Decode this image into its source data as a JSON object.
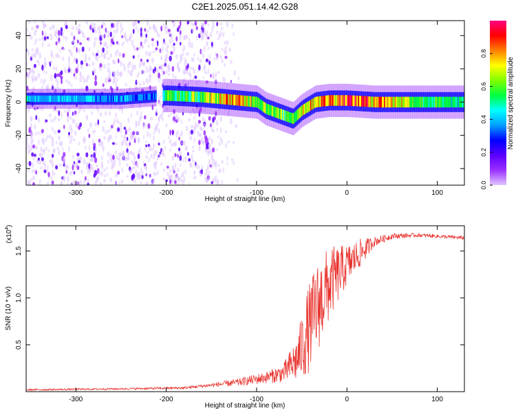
{
  "title": "C2E1.2025.051.14.42.G28",
  "colors": {
    "axis": "#000000",
    "snr_line": "#e8312c",
    "colormap": [
      "#e0c8ff",
      "#9b30ff",
      "#5a00ff",
      "#0000ff",
      "#00a0ff",
      "#00ffff",
      "#00ff40",
      "#80ff00",
      "#ffff00",
      "#ff8000",
      "#ff0000",
      "#ff0080"
    ]
  },
  "chart_data": [
    {
      "type": "heatmap",
      "name": "spectrogram",
      "xlabel": "Height of straight line (km)",
      "ylabel": "Frequency (Hz)",
      "xlim": [
        -355,
        130
      ],
      "ylim": [
        -50,
        49
      ],
      "x_ticks": [
        -300,
        -200,
        -100,
        0,
        100
      ],
      "x_tick_labels": [
        "-300",
        "-200",
        "-100",
        "0",
        "100"
      ],
      "y_ticks": [
        -40,
        -20,
        0,
        20,
        40
      ],
      "y_tick_labels": [
        "-40",
        "-20",
        "0",
        "20",
        "40"
      ],
      "colorbar": {
        "label": "Normalized spectral amplitude",
        "range": [
          0,
          1
        ],
        "ticks": [
          0.0,
          0.2,
          0.4,
          0.6,
          0.8
        ],
        "tick_labels": [
          "0.0",
          "0.2",
          "0.4",
          "0.6",
          "0.8"
        ]
      },
      "signal_track": [
        {
          "x": -345,
          "f": 2
        },
        {
          "x": -300,
          "f": 2
        },
        {
          "x": -250,
          "f": 2
        },
        {
          "x": -200,
          "f": 4
        },
        {
          "x": -160,
          "f": 3
        },
        {
          "x": -120,
          "f": 1
        },
        {
          "x": -100,
          "f": 0
        },
        {
          "x": -90,
          "f": -4
        },
        {
          "x": -75,
          "f": -7
        },
        {
          "x": -60,
          "f": -10
        },
        {
          "x": -50,
          "f": -5
        },
        {
          "x": -35,
          "f": 0
        },
        {
          "x": -20,
          "f": 1
        },
        {
          "x": 0,
          "f": 1
        },
        {
          "x": 30,
          "f": 0
        },
        {
          "x": 70,
          "f": 0
        },
        {
          "x": 130,
          "f": 0
        }
      ],
      "band_amplitude": [
        {
          "x": -345,
          "a": 0.45
        },
        {
          "x": -210,
          "a": 0.35
        },
        {
          "x": -205,
          "a": 0.55
        },
        {
          "x": -160,
          "a": 0.62
        },
        {
          "x": -130,
          "a": 0.85
        },
        {
          "x": -100,
          "a": 0.7
        },
        {
          "x": -70,
          "a": 0.6
        },
        {
          "x": -40,
          "a": 0.82
        },
        {
          "x": 0,
          "a": 0.92
        },
        {
          "x": 40,
          "a": 0.85
        },
        {
          "x": 80,
          "a": 0.6
        },
        {
          "x": 130,
          "a": 0.5
        }
      ],
      "noise_region": {
        "x_from": -355,
        "x_to": -150
      }
    },
    {
      "type": "line",
      "name": "snr",
      "xlabel": "Height of straight line (km)",
      "ylabel": "SNR (10 * v/v)",
      "multiplier_label": "(x10",
      "multiplier_exponent": "4",
      "xlim": [
        -355,
        130
      ],
      "ylim": [
        0,
        1.77
      ],
      "x_ticks": [
        -300,
        -200,
        -100,
        0,
        100
      ],
      "x_tick_labels": [
        "-300",
        "-200",
        "-100",
        "0",
        "100"
      ],
      "y_ticks": [
        0.5,
        1.0,
        1.5
      ],
      "y_tick_labels": [
        "0.5",
        "1.0",
        "1.5"
      ],
      "envelope": [
        {
          "x": -355,
          "y": 0.02,
          "noise": 0.01
        },
        {
          "x": -250,
          "y": 0.03,
          "noise": 0.01
        },
        {
          "x": -180,
          "y": 0.04,
          "noise": 0.015
        },
        {
          "x": -150,
          "y": 0.07,
          "noise": 0.02
        },
        {
          "x": -120,
          "y": 0.1,
          "noise": 0.04
        },
        {
          "x": -90,
          "y": 0.15,
          "noise": 0.06
        },
        {
          "x": -70,
          "y": 0.2,
          "noise": 0.1
        },
        {
          "x": -55,
          "y": 0.35,
          "noise": 0.25
        },
        {
          "x": -45,
          "y": 0.6,
          "noise": 0.45
        },
        {
          "x": -35,
          "y": 0.85,
          "noise": 0.5
        },
        {
          "x": -25,
          "y": 1.05,
          "noise": 0.45
        },
        {
          "x": -15,
          "y": 1.2,
          "noise": 0.35
        },
        {
          "x": 0,
          "y": 1.35,
          "noise": 0.22
        },
        {
          "x": 15,
          "y": 1.48,
          "noise": 0.15
        },
        {
          "x": 30,
          "y": 1.6,
          "noise": 0.05
        },
        {
          "x": 50,
          "y": 1.66,
          "noise": 0.03
        },
        {
          "x": 80,
          "y": 1.67,
          "noise": 0.02
        },
        {
          "x": 130,
          "y": 1.64,
          "noise": 0.02
        }
      ]
    }
  ]
}
